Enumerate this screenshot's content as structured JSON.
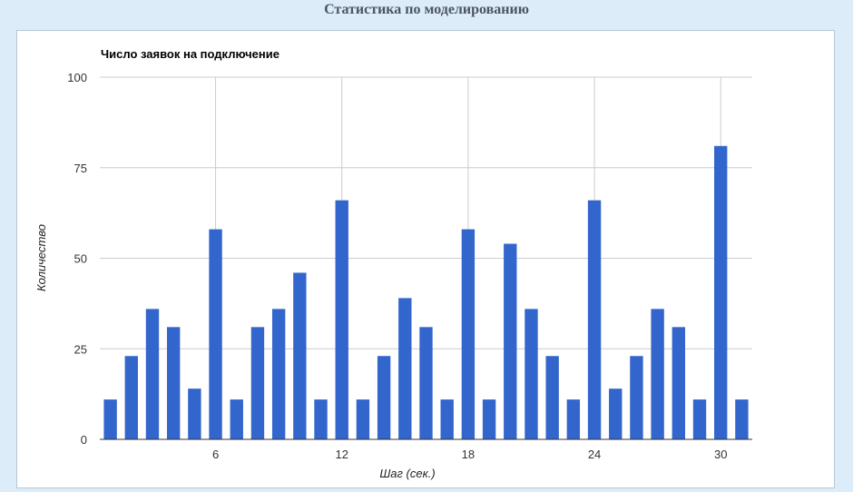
{
  "page": {
    "title": "Статистика по моделированию"
  },
  "chart_data": {
    "type": "bar",
    "title": "Число заявок на подключение",
    "xlabel": "Шаг (сек.)",
    "ylabel": "Количество",
    "x": [
      1,
      2,
      3,
      4,
      5,
      6,
      7,
      8,
      9,
      10,
      11,
      12,
      13,
      14,
      15,
      16,
      17,
      18,
      19,
      20,
      21,
      22,
      23,
      24,
      25,
      26,
      27,
      28,
      29,
      30,
      31
    ],
    "values": [
      11,
      23,
      36,
      31,
      14,
      58,
      11,
      31,
      36,
      46,
      11,
      66,
      11,
      23,
      39,
      31,
      11,
      58,
      11,
      54,
      36,
      23,
      11,
      66,
      14,
      23,
      36,
      31,
      11,
      81,
      11
    ],
    "ylim": [
      0,
      100
    ],
    "yticks": [
      0,
      25,
      50,
      75,
      100
    ],
    "xticks": [
      6,
      12,
      18,
      24,
      30
    ],
    "xlim": [
      0.5,
      31.5
    ],
    "grid": true,
    "legend": "none",
    "colors": {
      "bar": "#3366cc",
      "grid": "#cccccc",
      "axis": "#333333",
      "text": "#222222"
    }
  }
}
